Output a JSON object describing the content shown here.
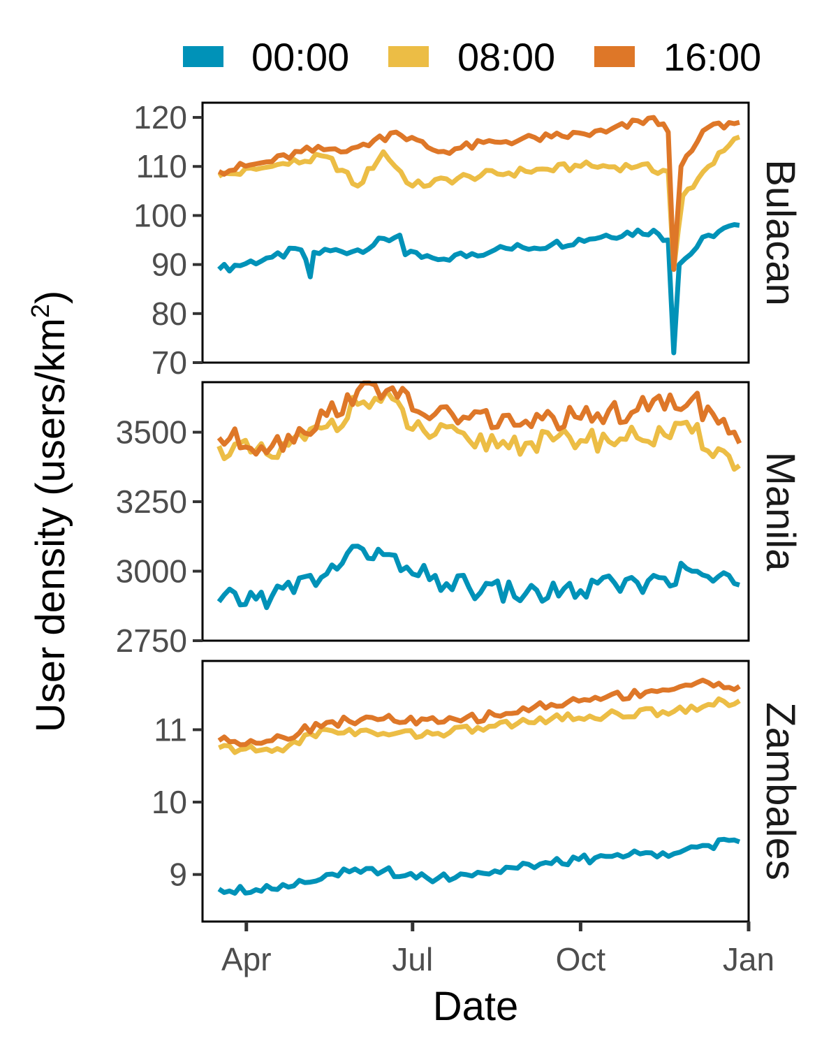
{
  "chart_data": {
    "type": "line",
    "xlabel": "Date",
    "ylabel": "User density (users/km",
    "ylabel_superscript": "2",
    "ylabel_close": ")",
    "x_range": [
      "2020-03-17",
      "2020-12-27"
    ],
    "x_ticks": [
      {
        "date": "2020-04-01",
        "label": "Apr"
      },
      {
        "date": "2020-07-01",
        "label": "Jul"
      },
      {
        "date": "2020-10-01",
        "label": "Oct"
      },
      {
        "date": "2021-01-01",
        "label": "Jan"
      }
    ],
    "x_lim": [
      "2020-03-08",
      "2021-01-01"
    ],
    "legend": {
      "position": "top",
      "items": [
        {
          "label": "00:00",
          "color": "#0092b8"
        },
        {
          "label": "08:00",
          "color": "#ecbd45"
        },
        {
          "label": "16:00",
          "color": "#de7728"
        }
      ]
    },
    "panels": [
      {
        "name": "Bulacan",
        "ylim": [
          70,
          123
        ],
        "y_ticks": [
          70,
          80,
          90,
          100,
          110,
          120
        ],
        "series": [
          {
            "name": "00:00",
            "points": [
              [
                "2020-03-17",
                89
              ],
              [
                "2020-04-15",
                91.5
              ],
              [
                "2020-05-01",
                93
              ],
              [
                "2020-05-06",
                87.5
              ],
              [
                "2020-05-08",
                92.5
              ],
              [
                "2020-06-01",
                93
              ],
              [
                "2020-06-24",
                96
              ],
              [
                "2020-06-27",
                92
              ],
              [
                "2020-07-15",
                91
              ],
              [
                "2020-08-15",
                93
              ],
              [
                "2020-09-15",
                94
              ],
              [
                "2020-10-15",
                96
              ],
              [
                "2020-11-10",
                97
              ],
              [
                "2020-11-18",
                95
              ],
              [
                "2020-11-21",
                72
              ],
              [
                "2020-11-24",
                90
              ],
              [
                "2020-12-10",
                96
              ],
              [
                "2020-12-27",
                98
              ]
            ]
          },
          {
            "name": "08:00",
            "points": [
              [
                "2020-03-17",
                108
              ],
              [
                "2020-04-15",
                110
              ],
              [
                "2020-05-15",
                112
              ],
              [
                "2020-06-01",
                106
              ],
              [
                "2020-06-15",
                113
              ],
              [
                "2020-07-01",
                106
              ],
              [
                "2020-08-01",
                108
              ],
              [
                "2020-09-01",
                109
              ],
              [
                "2020-10-01",
                110
              ],
              [
                "2020-11-01",
                110
              ],
              [
                "2020-11-18",
                109
              ],
              [
                "2020-11-21",
                89
              ],
              [
                "2020-11-26",
                104
              ],
              [
                "2020-12-10",
                110
              ],
              [
                "2020-12-27",
                116
              ]
            ]
          },
          {
            "name": "16:00",
            "points": [
              [
                "2020-03-17",
                109
              ],
              [
                "2020-04-15",
                111
              ],
              [
                "2020-05-01",
                113
              ],
              [
                "2020-06-01",
                114
              ],
              [
                "2020-06-22",
                117
              ],
              [
                "2020-07-15",
                113
              ],
              [
                "2020-08-15",
                115
              ],
              [
                "2020-09-15",
                116
              ],
              [
                "2020-10-15",
                117
              ],
              [
                "2020-11-10",
                120
              ],
              [
                "2020-11-18",
                117
              ],
              [
                "2020-11-21",
                89
              ],
              [
                "2020-11-25",
                110
              ],
              [
                "2020-12-10",
                118
              ],
              [
                "2020-12-27",
                119
              ]
            ]
          }
        ]
      },
      {
        "name": "Manila",
        "ylim": [
          2750,
          3680
        ],
        "y_ticks": [
          2750,
          3000,
          3250,
          3500
        ],
        "series": [
          {
            "name": "00:00",
            "points": [
              [
                "2020-03-17",
                2890
              ],
              [
                "2020-04-15",
                2910
              ],
              [
                "2020-05-15",
                2990
              ],
              [
                "2020-06-01",
                3090
              ],
              [
                "2020-06-15",
                3060
              ],
              [
                "2020-07-01",
                2990
              ],
              [
                "2020-08-01",
                2940
              ],
              [
                "2020-09-01",
                2920
              ],
              [
                "2020-10-01",
                2930
              ],
              [
                "2020-11-01",
                2960
              ],
              [
                "2020-12-01",
                3000
              ],
              [
                "2020-12-27",
                2950
              ]
            ]
          },
          {
            "name": "08:00",
            "points": [
              [
                "2020-03-17",
                3450
              ],
              [
                "2020-04-15",
                3410
              ],
              [
                "2020-05-15",
                3520
              ],
              [
                "2020-06-01",
                3600
              ],
              [
                "2020-06-20",
                3620
              ],
              [
                "2020-07-01",
                3510
              ],
              [
                "2020-08-01",
                3470
              ],
              [
                "2020-09-01",
                3460
              ],
              [
                "2020-10-01",
                3470
              ],
              [
                "2020-11-01",
                3480
              ],
              [
                "2020-12-01",
                3500
              ],
              [
                "2020-12-27",
                3380
              ]
            ]
          },
          {
            "name": "16:00",
            "points": [
              [
                "2020-03-17",
                3480
              ],
              [
                "2020-04-15",
                3450
              ],
              [
                "2020-05-15",
                3560
              ],
              [
                "2020-06-01",
                3650
              ],
              [
                "2020-06-20",
                3660
              ],
              [
                "2020-07-01",
                3580
              ],
              [
                "2020-08-01",
                3550
              ],
              [
                "2020-09-01",
                3540
              ],
              [
                "2020-10-01",
                3550
              ],
              [
                "2020-11-01",
                3580
              ],
              [
                "2020-12-01",
                3620
              ],
              [
                "2020-12-27",
                3460
              ]
            ]
          }
        ]
      },
      {
        "name": "Zambales",
        "ylim": [
          8.35,
          11.95
        ],
        "y_ticks": [
          9,
          10,
          11
        ],
        "series": [
          {
            "name": "00:00",
            "points": [
              [
                "2020-03-17",
                8.8
              ],
              [
                "2020-04-15",
                8.8
              ],
              [
                "2020-05-15",
                9.0
              ],
              [
                "2020-06-15",
                9.05
              ],
              [
                "2020-07-15",
                8.95
              ],
              [
                "2020-08-15",
                9.05
              ],
              [
                "2020-09-15",
                9.15
              ],
              [
                "2020-10-15",
                9.25
              ],
              [
                "2020-11-15",
                9.3
              ],
              [
                "2020-12-10",
                9.4
              ],
              [
                "2020-12-27",
                9.45
              ]
            ]
          },
          {
            "name": "08:00",
            "points": [
              [
                "2020-03-17",
                10.75
              ],
              [
                "2020-04-15",
                10.7
              ],
              [
                "2020-05-15",
                11.0
              ],
              [
                "2020-06-15",
                10.95
              ],
              [
                "2020-07-15",
                10.95
              ],
              [
                "2020-08-15",
                11.05
              ],
              [
                "2020-09-15",
                11.15
              ],
              [
                "2020-10-15",
                11.2
              ],
              [
                "2020-11-15",
                11.25
              ],
              [
                "2020-12-10",
                11.35
              ],
              [
                "2020-12-27",
                11.4
              ]
            ]
          },
          {
            "name": "16:00",
            "points": [
              [
                "2020-03-17",
                10.85
              ],
              [
                "2020-04-15",
                10.85
              ],
              [
                "2020-05-15",
                11.1
              ],
              [
                "2020-06-15",
                11.15
              ],
              [
                "2020-07-15",
                11.1
              ],
              [
                "2020-08-15",
                11.2
              ],
              [
                "2020-09-15",
                11.35
              ],
              [
                "2020-10-15",
                11.45
              ],
              [
                "2020-11-15",
                11.55
              ],
              [
                "2020-12-10",
                11.65
              ],
              [
                "2020-12-27",
                11.6
              ]
            ]
          }
        ]
      }
    ]
  }
}
